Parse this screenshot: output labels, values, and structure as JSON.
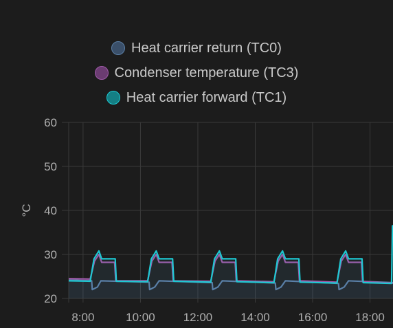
{
  "chart_data": {
    "type": "line",
    "ylabel": "°C",
    "ylim": [
      20,
      60
    ],
    "yticks": [
      20,
      30,
      40,
      50,
      60
    ],
    "xlim": [
      7.5,
      18.8
    ],
    "xticks": [
      8,
      10,
      12,
      14,
      16,
      18
    ],
    "xtick_labels": [
      "8:00",
      "10:00",
      "12:00",
      "14:00",
      "16:00",
      "18:00"
    ],
    "grid": true,
    "legend_position": "top-center",
    "series": [
      {
        "name": "Heat carrier return (TC0)",
        "color": "#5b7fa6",
        "fill": "#3a4f69",
        "points": [
          [
            7.5,
            24.2
          ],
          [
            8.3,
            24.0
          ],
          [
            8.32,
            22.0
          ],
          [
            8.5,
            22.6
          ],
          [
            8.62,
            24.0
          ],
          [
            10.3,
            23.7
          ],
          [
            10.32,
            22.0
          ],
          [
            10.5,
            22.6
          ],
          [
            10.65,
            24.0
          ],
          [
            12.5,
            23.6
          ],
          [
            12.52,
            22.0
          ],
          [
            12.7,
            22.6
          ],
          [
            12.85,
            24.0
          ],
          [
            14.7,
            23.5
          ],
          [
            14.72,
            22.0
          ],
          [
            14.9,
            22.6
          ],
          [
            15.05,
            24.0
          ],
          [
            16.9,
            23.4
          ],
          [
            16.92,
            22.0
          ],
          [
            17.1,
            22.6
          ],
          [
            17.25,
            24.0
          ],
          [
            18.8,
            23.6
          ]
        ]
      },
      {
        "name": "Condenser temperature (TC3)",
        "color": "#a05aaa",
        "fill": "#6b3c72",
        "points": [
          [
            7.5,
            24.5
          ],
          [
            8.25,
            24.4
          ],
          [
            8.4,
            28.5
          ],
          [
            8.55,
            30.0
          ],
          [
            8.65,
            28.2
          ],
          [
            9.1,
            28.2
          ],
          [
            9.14,
            24.0
          ],
          [
            10.25,
            24.0
          ],
          [
            10.4,
            28.5
          ],
          [
            10.55,
            30.0
          ],
          [
            10.65,
            28.2
          ],
          [
            11.1,
            28.2
          ],
          [
            11.14,
            24.0
          ],
          [
            12.45,
            23.9
          ],
          [
            12.6,
            28.5
          ],
          [
            12.75,
            30.0
          ],
          [
            12.85,
            28.2
          ],
          [
            13.3,
            28.2
          ],
          [
            13.34,
            24.0
          ],
          [
            14.65,
            23.8
          ],
          [
            14.8,
            28.5
          ],
          [
            14.95,
            30.0
          ],
          [
            15.05,
            28.2
          ],
          [
            15.5,
            28.2
          ],
          [
            15.54,
            24.0
          ],
          [
            16.85,
            23.7
          ],
          [
            17.0,
            28.5
          ],
          [
            17.15,
            30.0
          ],
          [
            17.25,
            28.2
          ],
          [
            17.7,
            28.2
          ],
          [
            17.74,
            23.8
          ],
          [
            18.8,
            23.5
          ]
        ]
      },
      {
        "name": "Heat carrier forward (TC1)",
        "color": "#1ec8d2",
        "fill": "#147f84",
        "points": [
          [
            7.5,
            24.0
          ],
          [
            8.25,
            23.9
          ],
          [
            8.38,
            29.0
          ],
          [
            8.55,
            30.8
          ],
          [
            8.65,
            29.0
          ],
          [
            9.12,
            29.0
          ],
          [
            9.16,
            23.9
          ],
          [
            10.25,
            23.8
          ],
          [
            10.38,
            29.0
          ],
          [
            10.55,
            30.8
          ],
          [
            10.65,
            29.0
          ],
          [
            11.12,
            29.0
          ],
          [
            11.16,
            23.9
          ],
          [
            12.45,
            23.7
          ],
          [
            12.58,
            29.0
          ],
          [
            12.75,
            30.8
          ],
          [
            12.85,
            29.0
          ],
          [
            13.32,
            29.0
          ],
          [
            13.36,
            23.8
          ],
          [
            14.65,
            23.6
          ],
          [
            14.78,
            29.0
          ],
          [
            14.95,
            30.8
          ],
          [
            15.05,
            29.0
          ],
          [
            15.52,
            29.0
          ],
          [
            15.56,
            23.7
          ],
          [
            16.85,
            23.5
          ],
          [
            16.98,
            29.0
          ],
          [
            17.15,
            30.8
          ],
          [
            17.25,
            29.0
          ],
          [
            17.72,
            29.0
          ],
          [
            17.76,
            23.6
          ],
          [
            18.75,
            23.4
          ],
          [
            18.78,
            36.5
          ],
          [
            18.8,
            36.5
          ]
        ]
      }
    ]
  }
}
